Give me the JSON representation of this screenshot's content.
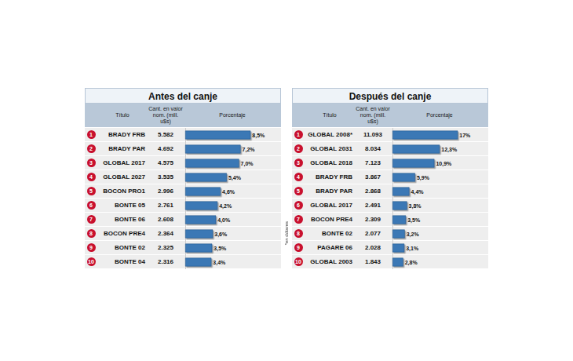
{
  "chart_data": [
    {
      "type": "bar",
      "orientation": "horizontal",
      "title": "Antes del canje",
      "column_headers": [
        "Título",
        "Cant. en valor nom. (mill. u$s)",
        "Porcentaje"
      ],
      "ranks": [
        1,
        2,
        3,
        4,
        5,
        6,
        7,
        8,
        9,
        10
      ],
      "categories": [
        "BRADY FRB",
        "BRADY PAR",
        "GLOBAL 2017",
        "GLOBAL 2027",
        "BOCON PRO1",
        "BONTE 05",
        "BONTE 06",
        "BOCON PRE4",
        "BONTE 02",
        "BONTE 04"
      ],
      "amounts": [
        5582,
        4692,
        4575,
        3535,
        2996,
        2761,
        2608,
        2364,
        2325,
        2316
      ],
      "amount_labels": [
        "5.582",
        "4.692",
        "4.575",
        "3.535",
        "2.996",
        "2.761",
        "2.608",
        "2.364",
        "2.325",
        "2.316"
      ],
      "values": [
        8.5,
        7.2,
        7.0,
        5.4,
        4.6,
        4.2,
        4.0,
        3.6,
        3.5,
        3.4
      ],
      "value_labels": [
        "8,5%",
        "7,2%",
        "7,0%",
        "5,4%",
        "4,6%",
        "4,2%",
        "4,0%",
        "3,6%",
        "3,5%",
        "3,4%"
      ],
      "color": "#3b78b5",
      "xlim": [
        0,
        10
      ],
      "data_labels": true,
      "tick_labels": false,
      "grid": false
    },
    {
      "type": "bar",
      "orientation": "horizontal",
      "title": "Después del canje",
      "column_headers": [
        "Título",
        "Cant. en valor nom. (mill. u$s)",
        "Porcentaje"
      ],
      "ranks": [
        1,
        2,
        3,
        4,
        5,
        6,
        7,
        8,
        9,
        10
      ],
      "categories": [
        "GLOBAL 2008*",
        "GLOBAL 2031",
        "GLOBAL 2018",
        "BRADY FRB",
        "BRADY PAR",
        "GLOBAL 2017",
        "BOCON PRE4",
        "BONTE 02",
        "PAGARE 06",
        "GLOBAL 2003"
      ],
      "amounts": [
        11093,
        8034,
        7123,
        3867,
        2868,
        2491,
        2309,
        2077,
        2028,
        1843
      ],
      "amount_labels": [
        "11.093",
        "8.034",
        "7.123",
        "3.867",
        "2.868",
        "2.491",
        "2.309",
        "2.077",
        "2.028",
        "1.843"
      ],
      "values": [
        17,
        12.3,
        10.9,
        5.9,
        4.4,
        3.8,
        3.5,
        3.2,
        3.1,
        2.8
      ],
      "value_labels": [
        "17%",
        "12,3%",
        "10,9%",
        "5,9%",
        "4,4%",
        "3,8%",
        "3,5%",
        "3,2%",
        "3,1%",
        "2,8%"
      ],
      "note": "*en dólares",
      "color": "#3b78b5",
      "xlim": [
        0,
        20
      ],
      "data_labels": true,
      "tick_labels": false,
      "grid": false
    }
  ]
}
